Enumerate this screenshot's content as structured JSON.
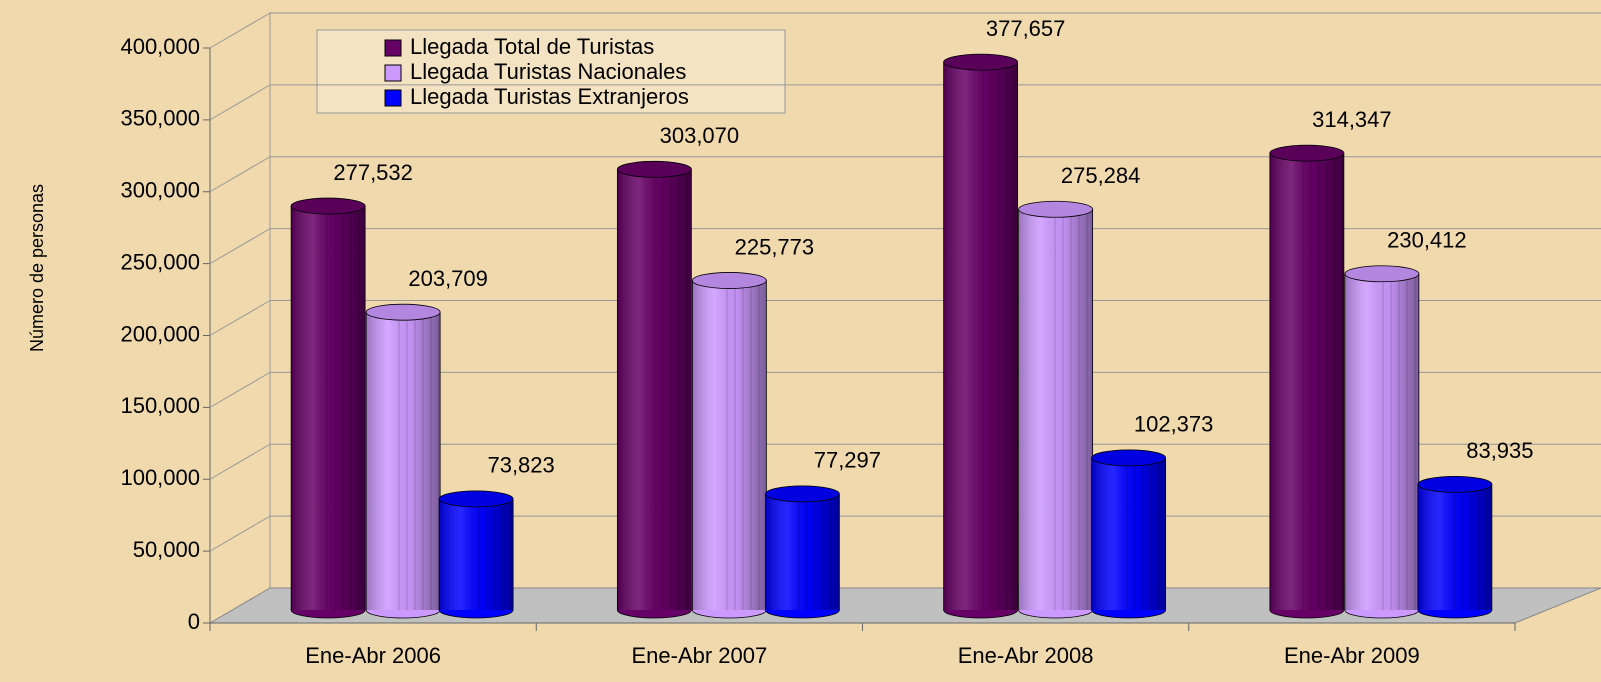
{
  "chart_data": {
    "type": "bar3d",
    "y_axis_label": "Número de personas",
    "categories": [
      "Ene-Abr 2006",
      "Ene-Abr 2007",
      "Ene-Abr 2008",
      "Ene-Abr 2009"
    ],
    "series": [
      {
        "name": "Llegada Total de Turistas",
        "color": "#660066",
        "values": [
          277532,
          303070,
          377657,
          314347
        ],
        "value_labels": [
          "277,532",
          "303,070",
          "377,657",
          "314,347"
        ]
      },
      {
        "name": "Llegada Turistas Nacionales",
        "color": "#cc99ff",
        "values": [
          203709,
          225773,
          275284,
          230412
        ],
        "value_labels": [
          "203,709",
          "225,773",
          "275,284",
          "230,412"
        ]
      },
      {
        "name": "Llegada Turistas Extranjeros",
        "color": "#0000ff",
        "values": [
          73823,
          77297,
          102373,
          83935
        ],
        "value_labels": [
          "73,823",
          "77,297",
          "102,373",
          "83,935"
        ]
      }
    ],
    "ylim": [
      0,
      400000
    ],
    "yticks": [
      0,
      {
        "value": 50000,
        "label": "50,000"
      },
      {
        "value": 100000,
        "label": "100,000"
      },
      {
        "value": 150000,
        "label": "150,000"
      },
      {
        "value": 200000,
        "label": "200,000"
      },
      {
        "value": 250000,
        "label": "250,000"
      },
      {
        "value": 300000,
        "label": "300,000"
      },
      {
        "value": 350000,
        "label": "350,000"
      },
      {
        "value": 400000,
        "label": "400,000"
      }
    ],
    "grid": true,
    "legend": "top-left"
  }
}
